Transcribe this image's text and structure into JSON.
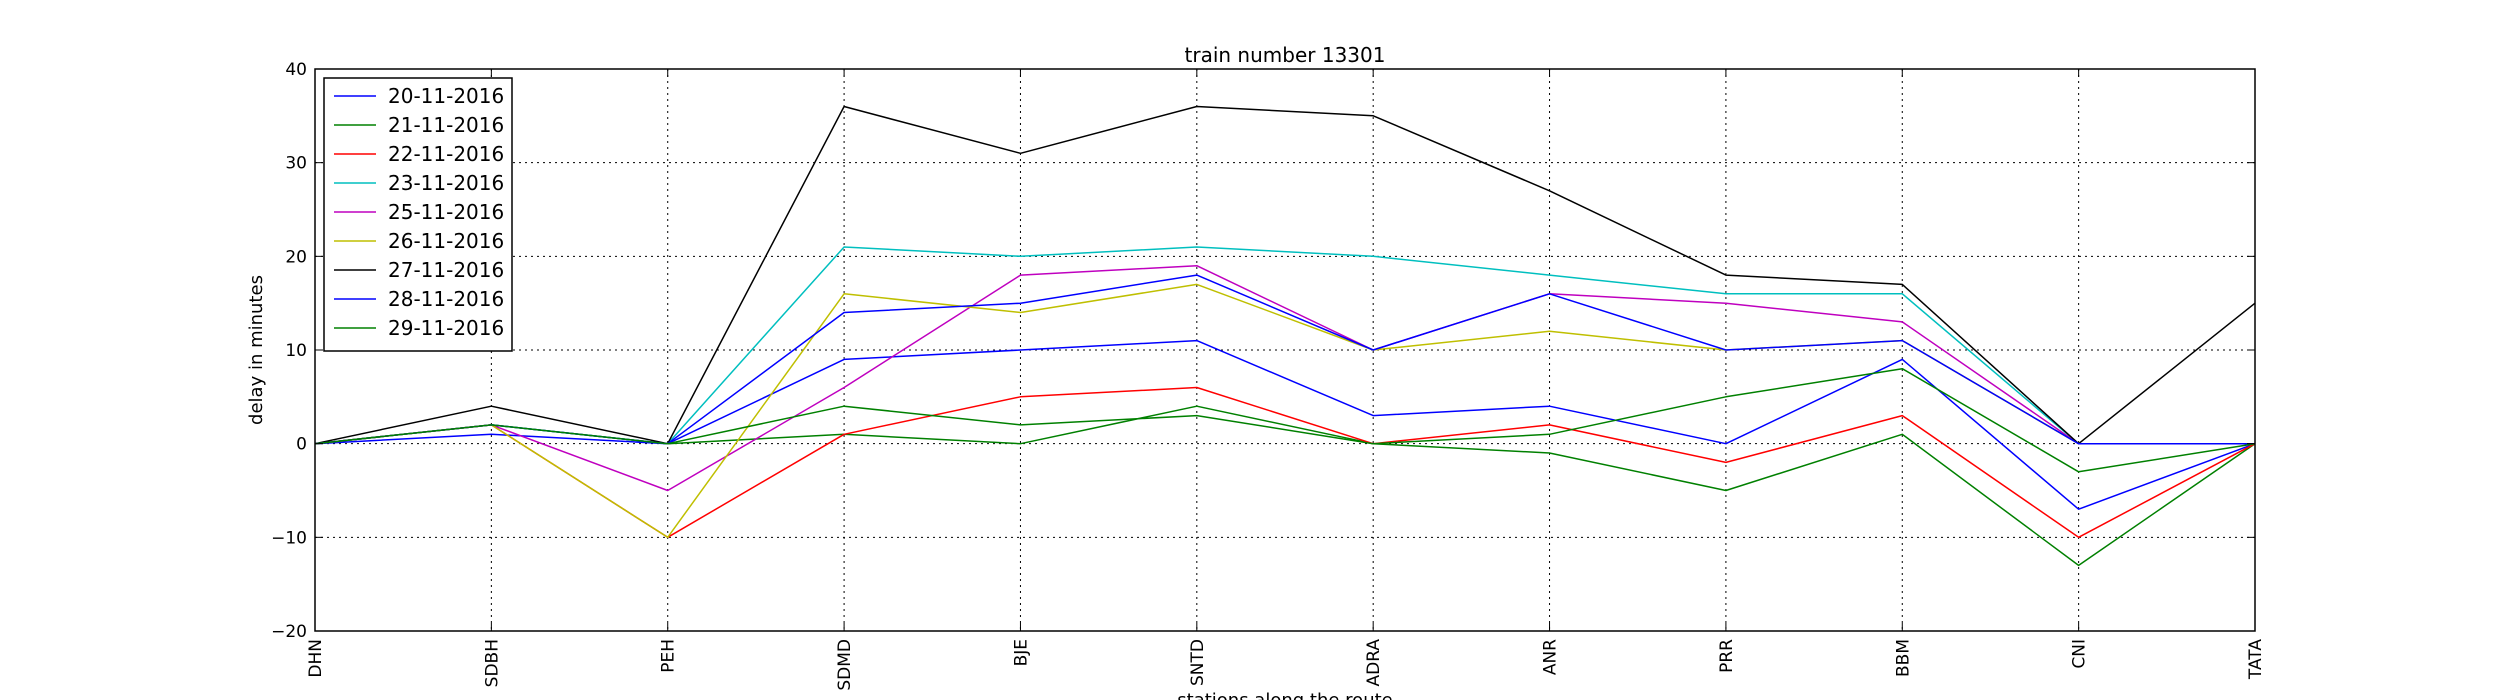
{
  "chart_data": {
    "type": "line",
    "title": "train number 13301",
    "xlabel": "stations along the route",
    "ylabel": "delay in minutes",
    "ylim": [
      -20,
      40
    ],
    "yticks": [
      -20,
      -10,
      0,
      10,
      20,
      30,
      40
    ],
    "yticks_text": [
      "−20",
      "−10",
      "0",
      "10",
      "20",
      "30",
      "40"
    ],
    "grid": true,
    "legend_position": "top-left",
    "categories": [
      "DHN",
      "SDBH",
      "PEH",
      "SDMD",
      "BJE",
      "SNTD",
      "ADRA",
      "ANR",
      "PRR",
      "BBM",
      "CNI",
      "TATA"
    ],
    "series": [
      {
        "name": "20-11-2016",
        "color": "#0000ff",
        "values": [
          0,
          1,
          0,
          9,
          10,
          11,
          3,
          4,
          0,
          9,
          -7,
          0
        ]
      },
      {
        "name": "21-11-2016",
        "color": "#008000",
        "values": [
          0,
          2,
          0,
          1,
          0,
          4,
          0,
          -1,
          -5,
          1,
          -13,
          0
        ]
      },
      {
        "name": "22-11-2016",
        "color": "#ff0000",
        "values": [
          0,
          2,
          -10,
          1,
          5,
          6,
          0,
          2,
          -2,
          3,
          -10,
          0
        ]
      },
      {
        "name": "23-11-2016",
        "color": "#00bfbf",
        "values": [
          0,
          2,
          0,
          21,
          20,
          21,
          20,
          18,
          16,
          16,
          0,
          0
        ]
      },
      {
        "name": "25-11-2016",
        "color": "#bf00bf",
        "values": [
          0,
          2,
          -5,
          6,
          18,
          19,
          10,
          16,
          15,
          13,
          0,
          0
        ]
      },
      {
        "name": "26-11-2016",
        "color": "#bfbf00",
        "values": [
          0,
          2,
          -10,
          16,
          14,
          17,
          10,
          12,
          10,
          11,
          0,
          0
        ]
      },
      {
        "name": "27-11-2016",
        "color": "#000000",
        "values": [
          0,
          4,
          0,
          36,
          31,
          36,
          35,
          27,
          18,
          17,
          0,
          15
        ]
      },
      {
        "name": "28-11-2016",
        "color": "#0000ff",
        "values": [
          0,
          2,
          0,
          14,
          15,
          18,
          10,
          16,
          10,
          11,
          0,
          0
        ]
      },
      {
        "name": "29-11-2016",
        "color": "#008000",
        "values": [
          0,
          2,
          0,
          4,
          2,
          3,
          0,
          1,
          5,
          8,
          -3,
          0
        ]
      }
    ]
  }
}
